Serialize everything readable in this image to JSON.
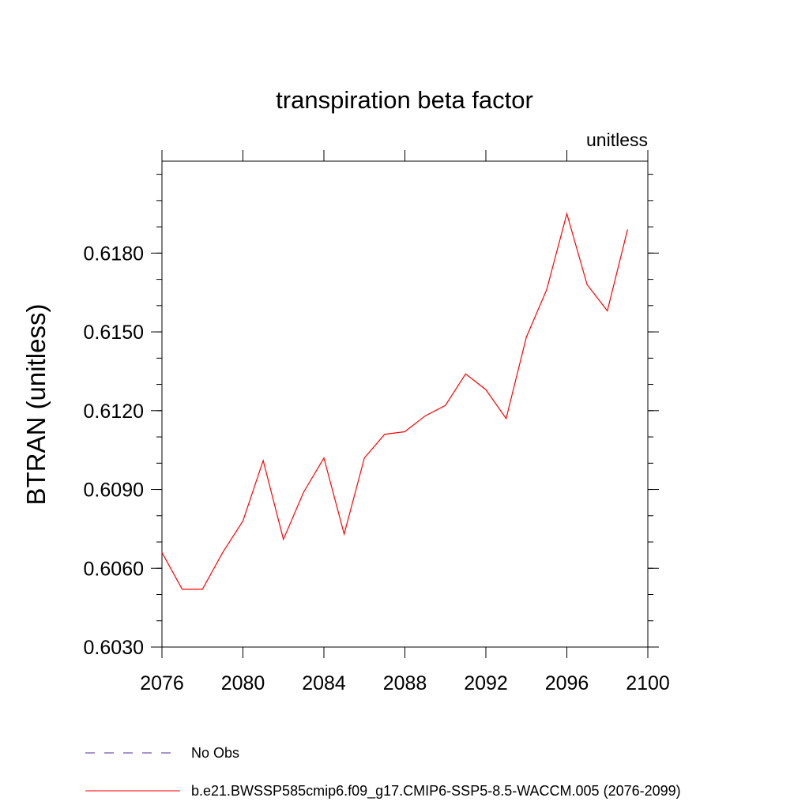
{
  "chart_data": {
    "type": "line",
    "title": "transpiration beta factor",
    "units_label": "unitless",
    "xlabel": "",
    "ylabel": "BTRAN  (unitless)",
    "xlim": [
      2076,
      2100
    ],
    "ylim": [
      0.603,
      0.6215
    ],
    "x_ticks": [
      2076,
      2080,
      2084,
      2088,
      2092,
      2096,
      2100
    ],
    "x_tick_labels": [
      "2076",
      "2080",
      "2084",
      "2088",
      "2092",
      "2096",
      "2100"
    ],
    "y_ticks": [
      0.603,
      0.606,
      0.609,
      0.612,
      0.615,
      0.618
    ],
    "y_tick_labels": [
      "0.6030",
      "0.6060",
      "0.6090",
      "0.6120",
      "0.6150",
      "0.6180"
    ],
    "grid": false,
    "legend_position": "bottom",
    "series": [
      {
        "name": "b.e21.BWSSP585cmip6.f09_g17.CMIP6-SSP5-8.5-WACCM.005 (2076-2099)",
        "color": "#ff0000",
        "dash": "solid",
        "x": [
          2076,
          2077,
          2078,
          2079,
          2080,
          2081,
          2082,
          2083,
          2084,
          2085,
          2086,
          2087,
          2088,
          2089,
          2090,
          2091,
          2092,
          2093,
          2094,
          2095,
          2096,
          2097,
          2098,
          2099
        ],
        "values": [
          0.6066,
          0.6052,
          0.6052,
          0.6066,
          0.6078,
          0.6101,
          0.6071,
          0.6089,
          0.6102,
          0.6073,
          0.6102,
          0.6111,
          0.6112,
          0.6118,
          0.6122,
          0.6134,
          0.6128,
          0.6117,
          0.6148,
          0.6166,
          0.6195,
          0.6168,
          0.6158,
          0.6189
        ]
      }
    ],
    "legend": [
      {
        "label": "No Obs",
        "color": "#4b2d9b",
        "dash": "dashed"
      },
      {
        "label": "b.e21.BWSSP585cmip6.f09_g17.CMIP6-SSP5-8.5-WACCM.005 (2076-2099)",
        "color": "#ff0000",
        "dash": "solid"
      }
    ]
  }
}
